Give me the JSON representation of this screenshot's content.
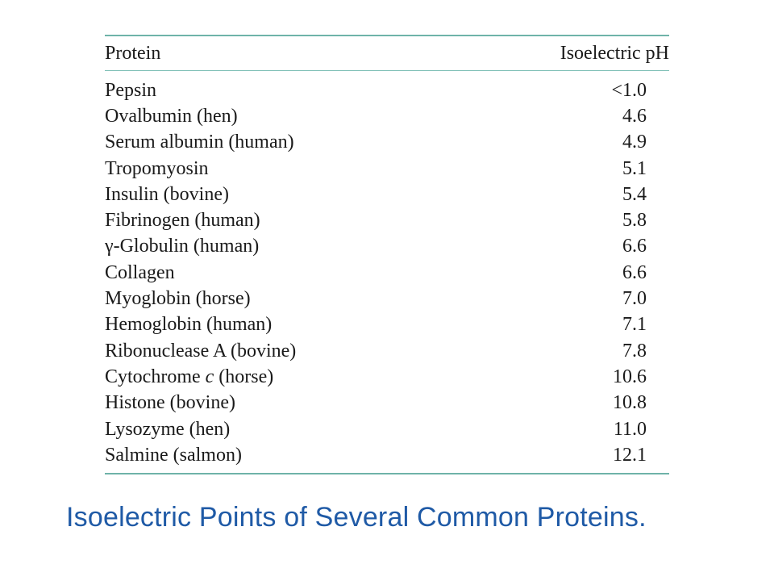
{
  "table": {
    "header": {
      "protein": "Protein",
      "ph": "Isoelectric pH"
    },
    "rows": [
      {
        "protein": "Pepsin",
        "ph": "<1.0"
      },
      {
        "protein": "Ovalbumin (hen)",
        "ph": "4.6"
      },
      {
        "protein": "Serum albumin (human)",
        "ph": "4.9"
      },
      {
        "protein": "Tropomyosin",
        "ph": "5.1"
      },
      {
        "protein": "Insulin (bovine)",
        "ph": "5.4"
      },
      {
        "protein": "Fibrinogen (human)",
        "ph": "5.8"
      },
      {
        "protein": "γ-Globulin (human)",
        "ph": "6.6"
      },
      {
        "protein": "Collagen",
        "ph": "6.6"
      },
      {
        "protein": "Myoglobin (horse)",
        "ph": "7.0"
      },
      {
        "protein": "Hemoglobin (human)",
        "ph": "7.1"
      },
      {
        "protein": "Ribonuclease A (bovine)",
        "ph": "7.8"
      },
      {
        "protein": "Cytochrome c (horse)",
        "ph": "10.6"
      },
      {
        "protein": "Histone (bovine)",
        "ph": "10.8"
      },
      {
        "protein": "Lysozyme (hen)",
        "ph": "11.0"
      },
      {
        "protein": "Salmine (salmon)",
        "ph": "12.1"
      }
    ]
  },
  "caption": "Isoelectric Points of Several Common Proteins.",
  "colors": {
    "rule": "#6fb3a9",
    "caption": "#1f5aa6"
  }
}
